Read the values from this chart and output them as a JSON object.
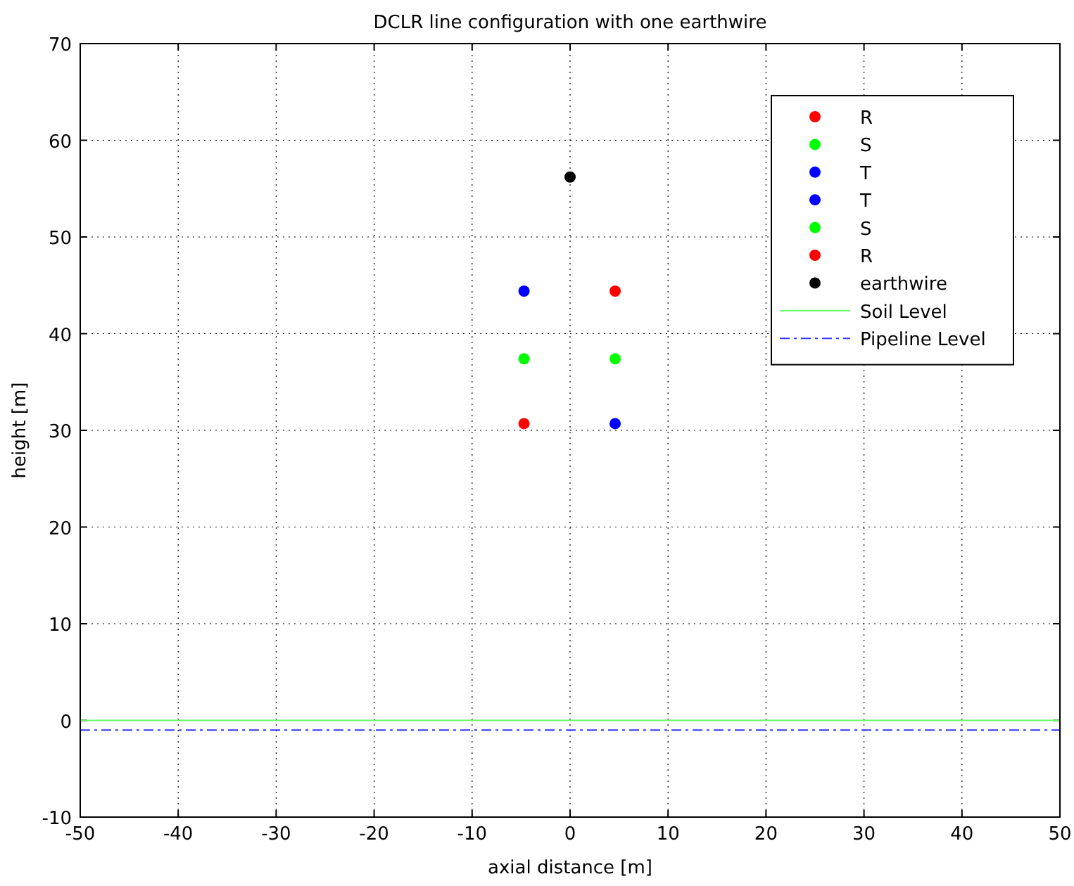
{
  "chart_data": {
    "type": "scatter",
    "title": "DCLR line configuration with one earthwire",
    "xlabel": "axial distance [m]",
    "ylabel": "height [m]",
    "xlim": [
      -50,
      50
    ],
    "xticks": [
      -50,
      -40,
      -30,
      -20,
      -10,
      0,
      10,
      20,
      30,
      40,
      50
    ],
    "ylim": [
      -10,
      70
    ],
    "yticks": [
      -10,
      0,
      10,
      20,
      30,
      40,
      50,
      60,
      70
    ],
    "grid": true,
    "legend": "top right",
    "marker": "circle",
    "series": [
      {
        "name": "R",
        "color": "#ff0000",
        "x": [
          -4.7
        ],
        "values": [
          30.7
        ]
      },
      {
        "name": "S",
        "color": "#00ff00",
        "x": [
          -4.7
        ],
        "values": [
          37.4
        ]
      },
      {
        "name": "T",
        "color": "#0000ff",
        "x": [
          -4.7
        ],
        "values": [
          44.4
        ]
      },
      {
        "name": "T",
        "color": "#0000ff",
        "x": [
          4.6
        ],
        "values": [
          30.7
        ]
      },
      {
        "name": "S",
        "color": "#00ff00",
        "x": [
          4.6
        ],
        "values": [
          37.4
        ]
      },
      {
        "name": "R",
        "color": "#ff0000",
        "x": [
          4.6
        ],
        "values": [
          44.4
        ]
      },
      {
        "name": "earthwire",
        "color": "#000000",
        "x": [
          0
        ],
        "values": [
          56.2
        ]
      },
      {
        "name": "Soil Level",
        "type": "line",
        "color": "#66ff66",
        "line_style": "solid",
        "marker": "none",
        "x": [
          -50,
          50
        ],
        "values": [
          0,
          0
        ]
      },
      {
        "name": "Pipeline Level",
        "type": "line",
        "color": "#3333ff",
        "line_style": "dashed",
        "marker": "none",
        "x": [
          -50,
          50
        ],
        "values": [
          -1,
          -1
        ]
      }
    ]
  }
}
